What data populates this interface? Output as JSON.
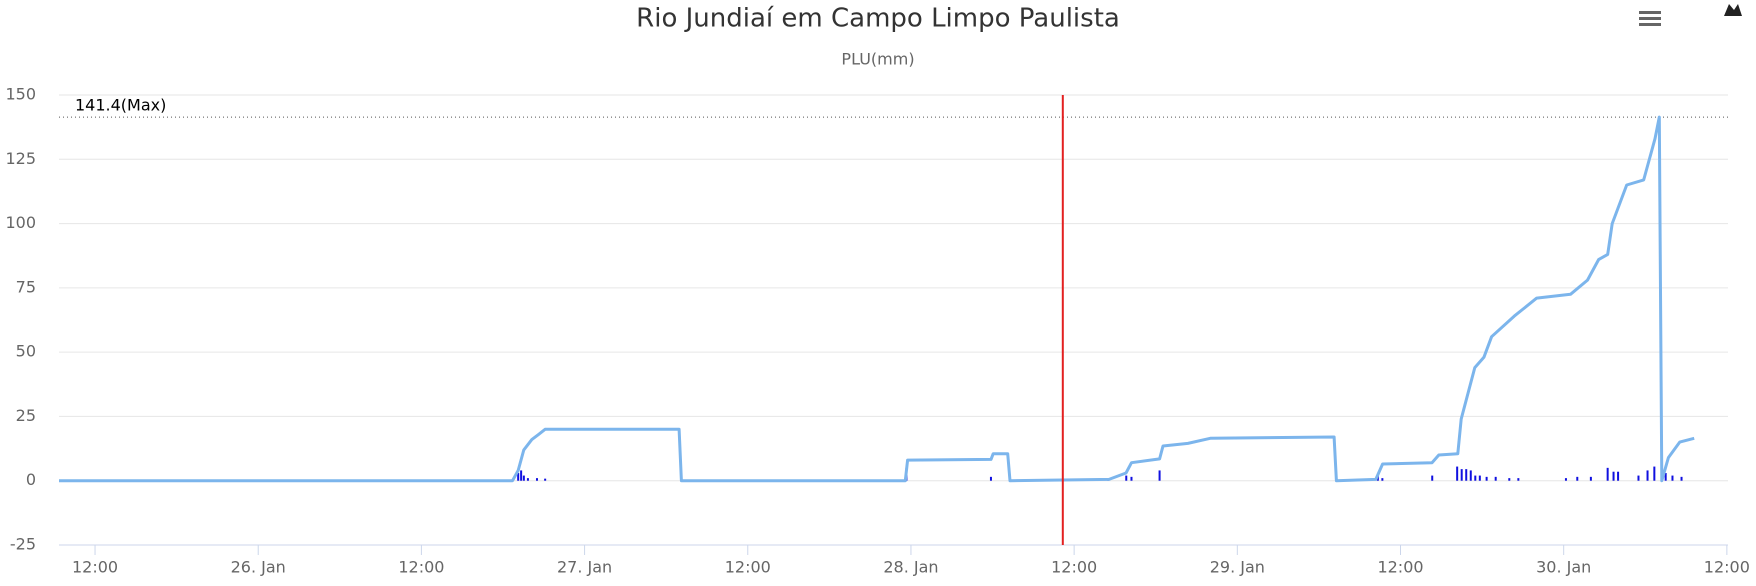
{
  "chart_data": {
    "type": "line",
    "title": "Rio Jundiaí em Campo Limpo Paulista",
    "subtitle": "PLU(mm)",
    "xlim": [
      "25. Jan 09:21",
      "30. Jan 12:05"
    ],
    "xticks": [
      {
        "value": "25. Jan 12:00",
        "label": "12:00"
      },
      {
        "value": "26. Jan 00:00",
        "label": "26. Jan"
      },
      {
        "value": "26. Jan 12:00",
        "label": "12:00"
      },
      {
        "value": "27. Jan 00:00",
        "label": "27. Jan"
      },
      {
        "value": "27. Jan 12:00",
        "label": "12:00"
      },
      {
        "value": "28. Jan 00:00",
        "label": "28. Jan"
      },
      {
        "value": "28. Jan 12:00",
        "label": "12:00"
      },
      {
        "value": "29. Jan 00:00",
        "label": "29. Jan"
      },
      {
        "value": "29. Jan 12:00",
        "label": "12:00"
      },
      {
        "value": "30. Jan 00:00",
        "label": "30. Jan"
      },
      {
        "value": "30. Jan 12:00",
        "label": "12:00"
      }
    ],
    "ylim": [
      -25,
      150
    ],
    "yticks": [
      -25,
      0,
      25,
      50,
      75,
      100,
      125,
      150
    ],
    "grid": true,
    "plot_line": {
      "x": "28. Jan 11:10",
      "color": "#e32020"
    },
    "max_line": {
      "value": 141.4,
      "label": "141.4(Max)"
    },
    "series": [
      {
        "type": "line",
        "color": "#7cb5ec",
        "x": [
          "25. Jan 09:21",
          "26. Jan 18:42",
          "26. Jan 19:07",
          "26. Jan 19:32",
          "26. Jan 20:07",
          "26. Jan 20:37",
          "26. Jan 21:06",
          "27. Jan 06:57",
          "27. Jan 07:07",
          "27. Jan 23:35",
          "27. Jan 23:45",
          "28. Jan 05:53",
          "28. Jan 06:03",
          "28. Jan 07:07",
          "28. Jan 07:17",
          "28. Jan 14:34",
          "28. Jan 15:49",
          "28. Jan 16:13",
          "28. Jan 18:17",
          "28. Jan 18:32",
          "28. Jan 20:22",
          "28. Jan 22:01",
          "29. Jan 07:07",
          "29. Jan 07:17",
          "29. Jan 10:11",
          "29. Jan 10:41",
          "29. Jan 14:19",
          "29. Jan 14:49",
          "29. Jan 16:13",
          "29. Jan 16:28",
          "29. Jan 17:28",
          "29. Jan 18:08",
          "29. Jan 18:42",
          "29. Jan 20:22",
          "29. Jan 22:01",
          "30. Jan 00:30",
          "30. Jan 01:45",
          "30. Jan 02:34",
          "30. Jan 03:14",
          "30. Jan 03:34",
          "30. Jan 04:38",
          "30. Jan 05:53",
          "30. Jan 06:43",
          "30. Jan 07:02",
          "30. Jan 07:13",
          "30. Jan 07:42",
          "30. Jan 08:32",
          "30. Jan 09:36"
        ],
        "values": [
          0,
          0,
          4,
          12,
          16,
          18,
          20,
          20,
          0,
          0,
          8,
          8.3,
          10.5,
          10.5,
          0,
          0.5,
          3,
          7,
          8.5,
          13.5,
          14.5,
          16.5,
          17,
          0,
          0.5,
          6.5,
          7,
          10,
          10.5,
          24,
          44,
          48,
          56,
          64,
          71,
          72.5,
          78,
          86,
          88,
          100,
          115,
          117,
          133,
          141.4,
          0,
          9,
          15,
          16.5
        ]
      },
      {
        "type": "column",
        "color": "#1010e0",
        "x": [
          "26. Jan 19:07",
          "26. Jan 19:20",
          "26. Jan 19:32",
          "26. Jan 19:50",
          "26. Jan 20:30",
          "26. Jan 21:06",
          "27. Jan 23:40",
          "28. Jan 05:53",
          "28. Jan 14:30",
          "28. Jan 15:50",
          "28. Jan 16:13",
          "28. Jan 18:17",
          "29. Jan 10:20",
          "29. Jan 10:40",
          "29. Jan 14:20",
          "29. Jan 16:10",
          "29. Jan 16:30",
          "29. Jan 16:50",
          "29. Jan 17:10",
          "29. Jan 17:30",
          "29. Jan 17:50",
          "29. Jan 18:20",
          "29. Jan 19:00",
          "29. Jan 20:00",
          "29. Jan 20:40",
          "30. Jan 00:10",
          "30. Jan 01:00",
          "30. Jan 02:00",
          "30. Jan 03:14",
          "30. Jan 03:40",
          "30. Jan 04:00",
          "30. Jan 05:30",
          "30. Jan 06:10",
          "30. Jan 06:40",
          "30. Jan 07:30",
          "30. Jan 08:00",
          "30. Jan 08:40"
        ],
        "values": [
          3,
          4,
          2,
          1,
          1,
          0.8,
          5,
          1.5,
          0.8,
          2,
          1.5,
          4,
          2,
          1,
          2,
          5.5,
          4.5,
          4.5,
          4,
          2,
          2,
          1.5,
          1.5,
          1,
          1,
          1,
          1.5,
          1.5,
          5,
          3.5,
          3.5,
          2,
          4,
          5.5,
          3,
          2,
          1.5
        ]
      }
    ]
  }
}
